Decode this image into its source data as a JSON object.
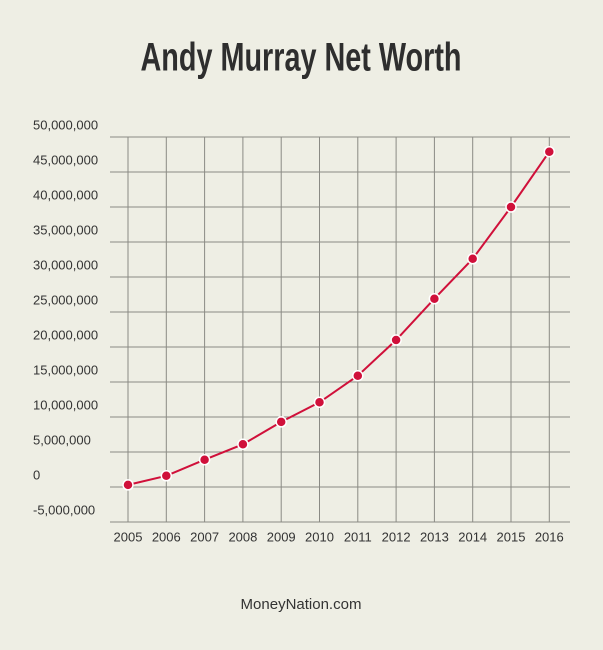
{
  "chart_data": {
    "type": "line",
    "title": "Andy Murray Net Worth",
    "source": "MoneyNation.com",
    "categories": [
      "2005",
      "2006",
      "2007",
      "2008",
      "2009",
      "2010",
      "2011",
      "2012",
      "2013",
      "2014",
      "2015",
      "2016"
    ],
    "series": [
      {
        "name": "Net Worth",
        "color": "#d0103a",
        "values": [
          300000,
          1600000,
          3900000,
          6100000,
          9300000,
          12100000,
          15900000,
          21000000,
          26900000,
          32600000,
          40000000,
          47900000
        ]
      }
    ],
    "ylim": [
      -5000000,
      50000000
    ],
    "yticks": [
      {
        "value": -5000000,
        "label": "-5,000,000"
      },
      0,
      {
        "value": 5000000,
        "label": "5,000,000"
      },
      {
        "value": 10000000,
        "label": "10,000,000"
      },
      {
        "value": 15000000,
        "label": "15,000,000"
      },
      {
        "value": 20000000,
        "label": "20,000,000"
      },
      {
        "value": 25000000,
        "label": "25,000,000"
      },
      {
        "value": 30000000,
        "label": "30,000,000"
      },
      {
        "value": 35000000,
        "label": "35,000,000"
      },
      {
        "value": 40000000,
        "label": "40,000,000"
      },
      {
        "value": 45000000,
        "label": "45,000,000"
      },
      {
        "value": 50000000,
        "label": "50,000,000"
      }
    ],
    "grid": true
  }
}
